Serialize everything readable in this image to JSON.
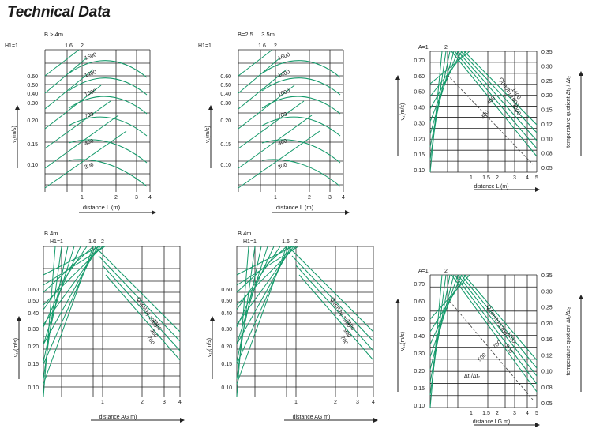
{
  "page": {
    "title": "Technical Data"
  },
  "colors": {
    "curve": "#159a6b",
    "grid": "#222222",
    "dash": "#4a4a4a"
  },
  "chart_data": [
    {
      "id": "p1",
      "type": "line",
      "title": "B > 4m",
      "subtitle": [
        "H1=1",
        "1.6",
        "2"
      ],
      "xlabel": "distance L (m)",
      "ylabel": "v₁(m/s)",
      "y2label": "",
      "xticks": [
        "1",
        "2",
        "3",
        "4"
      ],
      "yticks": [
        "0.60",
        "0.50",
        "0.40",
        "0.30",
        "0.20",
        "0.15",
        "0.10"
      ],
      "y2ticks": [],
      "series_labels": [
        "1600",
        "1400",
        "1000",
        "700",
        "400",
        "300"
      ]
    },
    {
      "id": "p2",
      "type": "line",
      "title": "B=2.5 ... 3.5m",
      "subtitle": [
        "H1=1",
        "1.6",
        "2"
      ],
      "xlabel": "distance L (m)",
      "ylabel": "v₁(m/s)",
      "y2label": "",
      "xticks": [
        "1",
        "2",
        "3",
        "4"
      ],
      "yticks": [
        "0.60",
        "0.50",
        "0.40",
        "0.30",
        "0.20",
        "0.15",
        "0.10"
      ],
      "y2ticks": [],
      "series_labels": [
        "1600",
        "1400",
        "1000",
        "700",
        "400",
        "300"
      ]
    },
    {
      "id": "p3",
      "type": "line",
      "title": "",
      "subtitle": [
        "A=1",
        "2"
      ],
      "xlabel": "distance L (m)",
      "ylabel": "v₁(m/s)",
      "y2label": "temperature quotient Δt₁ / Δt₂",
      "xticks": [
        "1",
        "1.5",
        "2",
        "3",
        "4",
        "5"
      ],
      "yticks": [
        "0.70",
        "0.60",
        "0.50",
        "0.40",
        "0.30",
        "0.20",
        "0.15",
        "0.10"
      ],
      "y2ticks": [
        "0.35",
        "0.30",
        "0.25",
        "0.20",
        "0.15",
        "0.12",
        "0.10",
        "0.08",
        "0.05"
      ],
      "series_labels": [
        "Q(m³/h) 1600",
        "1400",
        "1000",
        "400",
        "300"
      ]
    },
    {
      "id": "p4",
      "type": "line",
      "title": "B 4m",
      "subtitle": [
        "H1=1",
        "1.6",
        "2"
      ],
      "xlabel": "distance AG m)",
      "ylabel": "v₁₁(m/s)",
      "y2label": "",
      "xticks": [
        "1",
        "2",
        "3",
        "4"
      ],
      "yticks": [
        "0.60",
        "0.50",
        "0.40",
        "0.30",
        "0.20",
        "0.15",
        "0.10"
      ],
      "y2ticks": [],
      "series_labels": [
        "Q (m³/h) 1300",
        "1100",
        "900",
        "700"
      ]
    },
    {
      "id": "p5",
      "type": "line",
      "title": "B 4m",
      "subtitle": [
        "H1=1",
        "1.6",
        "2"
      ],
      "xlabel": "distance AG m)",
      "ylabel": "v₁₁(m/s)",
      "y2label": "",
      "xticks": [
        "1",
        "2",
        "3",
        "4"
      ],
      "yticks": [
        "0.60",
        "0.50",
        "0.40",
        "0.30",
        "0.20",
        "0.15",
        "0.10"
      ],
      "y2ticks": [],
      "series_labels": [
        "Q (m³/h) 1300",
        "1100",
        "900",
        "700"
      ]
    },
    {
      "id": "p6",
      "type": "line",
      "title": "",
      "subtitle": [
        "A=1",
        "2"
      ],
      "xlabel": "distance LG m)",
      "ylabel": "v₁₁(m/s)",
      "y2label": "temperature quotient Δt₁/Δt₂",
      "xticks": [
        "1",
        "1.5",
        "2",
        "3",
        "4",
        "5"
      ],
      "yticks": [
        "0.70",
        "0.60",
        "0.50",
        "0.40",
        "0.30",
        "0.20",
        "0.15",
        "0.10"
      ],
      "y2ticks": [
        "0.35",
        "0.30",
        "0.25",
        "0.20",
        "0.16",
        "0.12",
        "0.10",
        "0.08",
        "0.05"
      ],
      "series_labels": [
        "Q (m³/h) 1300",
        "1100",
        "900",
        "700",
        "500",
        "Δt₁/Δt₂"
      ]
    }
  ]
}
